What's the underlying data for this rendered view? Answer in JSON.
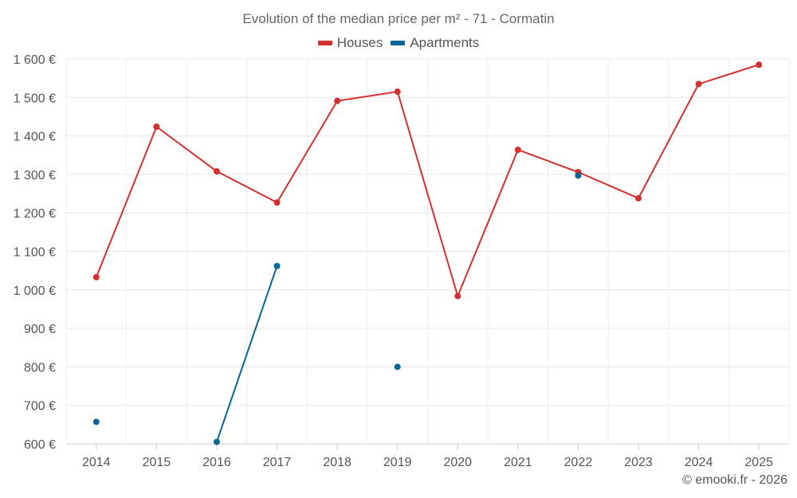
{
  "chart_data": {
    "type": "line",
    "title": "Evolution of the median price per m² - 71 - Cormatin",
    "xlabel": "",
    "ylabel": "",
    "categories": [
      "2014",
      "2015",
      "2016",
      "2017",
      "2018",
      "2019",
      "2020",
      "2021",
      "2022",
      "2023",
      "2024",
      "2025"
    ],
    "ylim": [
      600,
      1600
    ],
    "yticks": [
      600,
      700,
      800,
      900,
      1000,
      1100,
      1200,
      1300,
      1400,
      1500,
      1600
    ],
    "ytick_labels": [
      "600 €",
      "700 €",
      "800 €",
      "900 €",
      "1 000 €",
      "1 100 €",
      "1 200 €",
      "1 300 €",
      "1 400 €",
      "1 500 €",
      "1 600 €"
    ],
    "grid": true,
    "legend_position": "top-center",
    "series": [
      {
        "name": "Houses",
        "color": "#d32f2f",
        "values": [
          1033,
          1424,
          1308,
          1227,
          1491,
          1515,
          984,
          1364,
          1306,
          1238,
          1535,
          1585
        ]
      },
      {
        "name": "Apartments",
        "color": "#0a6496",
        "values": [
          657,
          null,
          605,
          1062,
          null,
          800,
          null,
          null,
          1297,
          null,
          null,
          null
        ]
      }
    ]
  },
  "credit": "© emooki.fr - 2026"
}
